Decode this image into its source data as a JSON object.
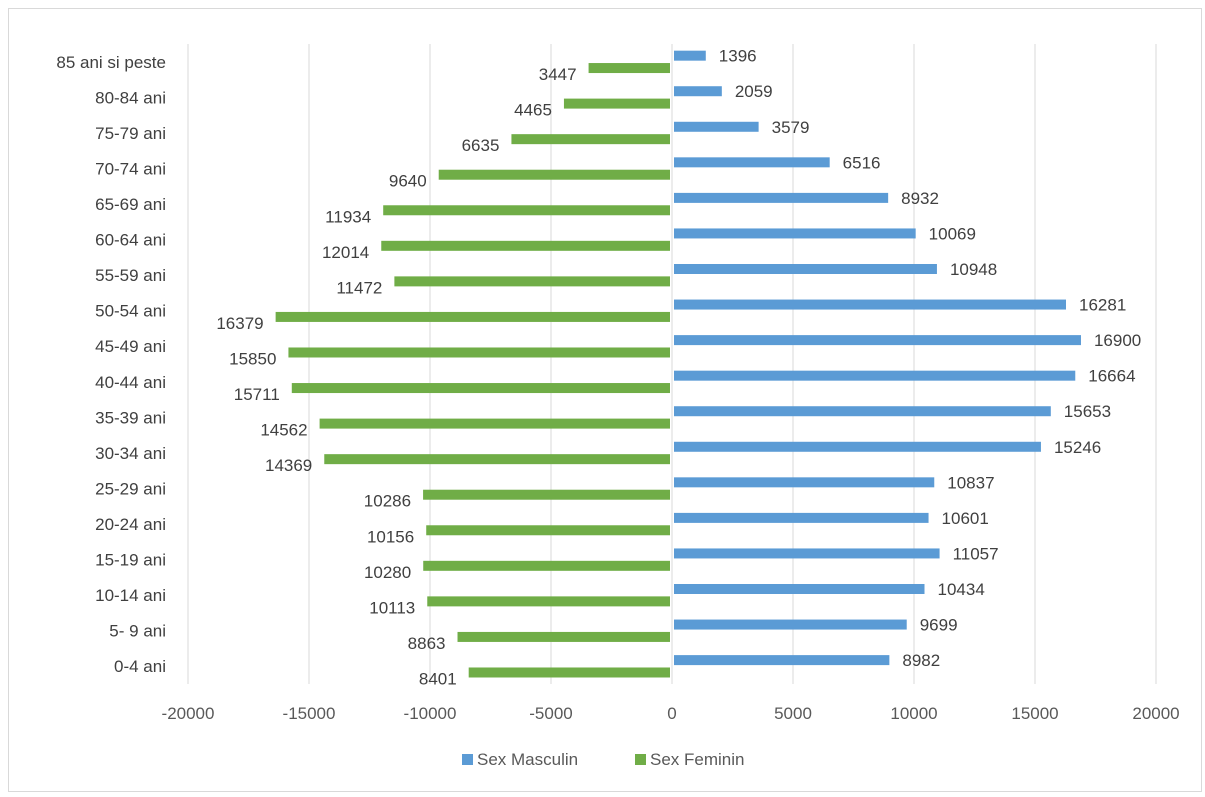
{
  "chart_data": {
    "type": "bar",
    "orientation": "horizontal",
    "categories": [
      "0-4 ani",
      "5- 9 ani",
      "10-14 ani",
      "15-19 ani",
      "20-24 ani",
      "25-29 ani",
      "30-34 ani",
      "35-39 ani",
      "40-44 ani",
      "45-49 ani",
      "50-54 ani",
      "55-59 ani",
      "60-64 ani",
      "65-69 ani",
      "70-74 ani",
      "75-79 ani",
      "80-84 ani",
      "85 ani si peste"
    ],
    "series": [
      {
        "name": "Sex Masculin",
        "color": "#5b9bd5",
        "values": [
          8982,
          9699,
          10434,
          11057,
          10601,
          10837,
          15246,
          15653,
          16664,
          16900,
          16281,
          10948,
          10069,
          8932,
          6516,
          3579,
          2059,
          1396
        ]
      },
      {
        "name": "Sex Feminin",
        "color": "#70ad47",
        "values": [
          -8401,
          -8863,
          -10113,
          -10280,
          -10156,
          -10286,
          -14369,
          -14562,
          -15711,
          -15850,
          -16379,
          -11472,
          -12014,
          -11934,
          -9640,
          -6635,
          -4465,
          -3447
        ]
      }
    ],
    "data_labels": {
      "Sex Masculin": [
        "8982",
        "9699",
        "10434",
        "11057",
        "10601",
        "10837",
        "15246",
        "15653",
        "16664",
        "16900",
        "16281",
        "10948",
        "10069",
        "8932",
        "6516",
        "3579",
        "2059",
        "1396"
      ],
      "Sex Feminin": [
        "8401",
        "8863",
        "10113",
        "10280",
        "10156",
        "10286",
        "14369",
        "14562",
        "15711",
        "15850",
        "16379",
        "11472",
        "12014",
        "11934",
        "9640",
        "6635",
        "4465",
        "3447"
      ]
    },
    "x_ticks": [
      -20000,
      -15000,
      -10000,
      -5000,
      0,
      5000,
      10000,
      15000,
      20000
    ],
    "xlim": [
      -20000,
      20000
    ],
    "grid": true,
    "legend": "bottom",
    "title": "",
    "xlabel": "",
    "ylabel": ""
  }
}
